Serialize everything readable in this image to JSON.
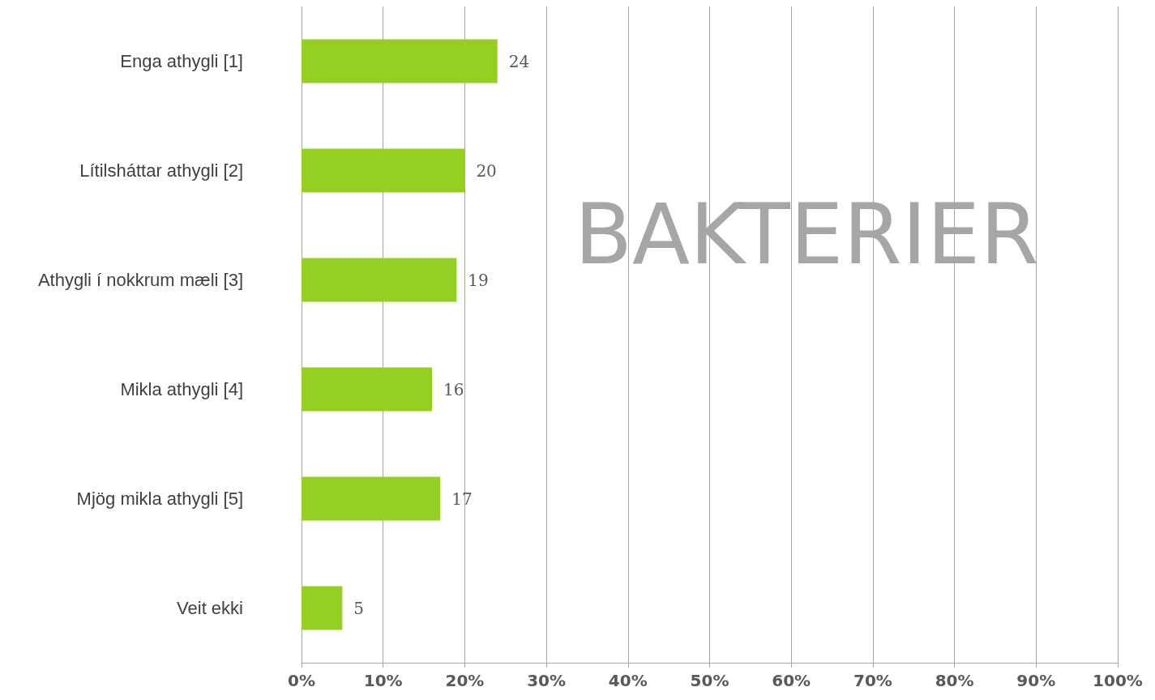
{
  "chart_data": {
    "type": "bar",
    "orientation": "horizontal",
    "title": "BAKTERIER",
    "categories": [
      "Enga athygli [1]",
      "Lítilsháttar athygli [2]",
      "Athygli í nokkrum mæli [3]",
      "Mikla athygli [4]",
      "Mjög mikla athygli [5]",
      "Veit ekki"
    ],
    "values": [
      24,
      20,
      19,
      16,
      17,
      5
    ],
    "color": "#94cf22",
    "xlim": [
      0,
      100
    ],
    "xticks": [
      {
        "value": 0,
        "label": "0%"
      },
      {
        "value": 10,
        "label": "10%"
      },
      {
        "value": 20,
        "label": "20%"
      },
      {
        "value": 30,
        "label": "30%"
      },
      {
        "value": 40,
        "label": "40%"
      },
      {
        "value": 50,
        "label": "50%"
      },
      {
        "value": 60,
        "label": "60%"
      },
      {
        "value": 70,
        "label": "70%"
      },
      {
        "value": 80,
        "label": "80%"
      },
      {
        "value": 90,
        "label": "90%"
      },
      {
        "value": 100,
        "label": "100%"
      }
    ],
    "data_labels": true,
    "grid": "x"
  }
}
